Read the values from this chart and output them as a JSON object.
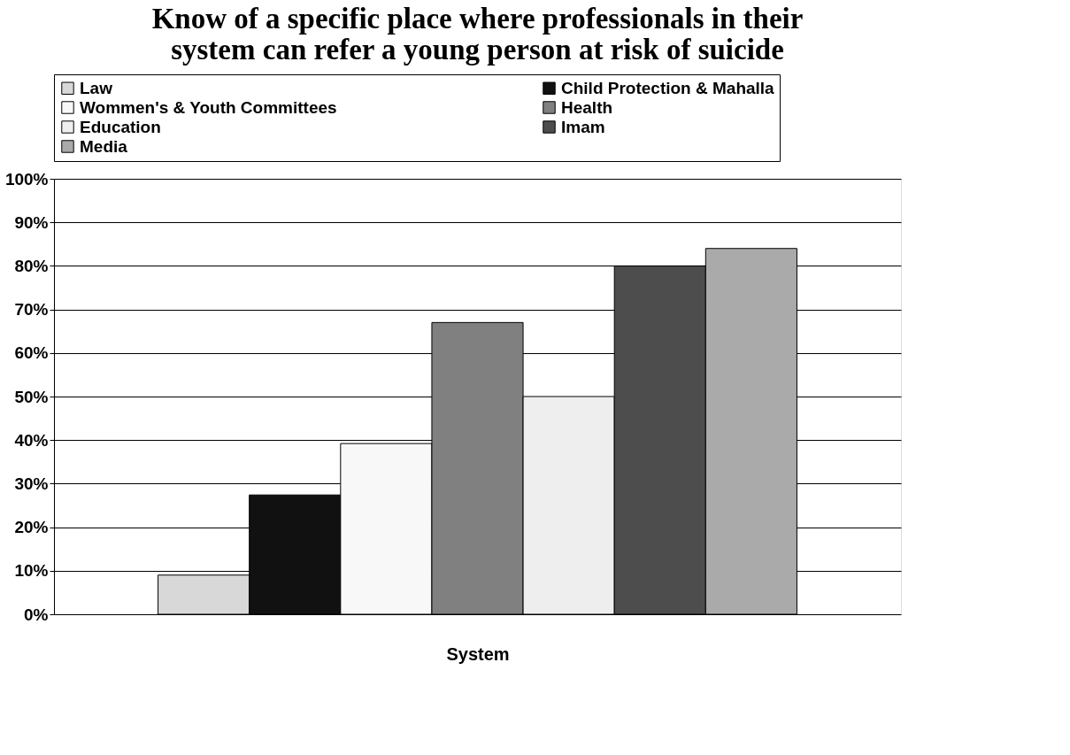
{
  "chart_data": {
    "type": "bar",
    "title": "Know of a specific place where professionals in their\nsystem can refer a young person at risk of suicide",
    "xlabel": "System",
    "categories": [
      null
    ],
    "series": [
      {
        "name": "Law",
        "color": "#d8d8d8",
        "values": [
          9
        ]
      },
      {
        "name": "Child Protection & Mahalla",
        "color": "#111111",
        "values": [
          27.4
        ]
      },
      {
        "name": "Wommen's & Youth Committees",
        "color": "#f8f8f8",
        "values": [
          39.2
        ]
      },
      {
        "name": "Health",
        "color": "#808080",
        "values": [
          67
        ]
      },
      {
        "name": "Education",
        "color": "#eeeeee",
        "values": [
          50
        ]
      },
      {
        "name": "Imam",
        "color": "#4d4d4d",
        "values": [
          80
        ]
      },
      {
        "name": "Media",
        "color": "#aaaaaa",
        "values": [
          84
        ]
      }
    ],
    "ylim": [
      0,
      100
    ],
    "yticks": [
      {
        "value": 0,
        "label": "0%"
      },
      {
        "value": 10,
        "label": "10%"
      },
      {
        "value": 20,
        "label": "20%"
      },
      {
        "value": 30,
        "label": "30%"
      },
      {
        "value": 40,
        "label": "40%"
      },
      {
        "value": 50,
        "label": "50%"
      },
      {
        "value": 60,
        "label": "60%"
      },
      {
        "value": 70,
        "label": "70%"
      },
      {
        "value": 80,
        "label": "80%"
      },
      {
        "value": 90,
        "label": "90%"
      },
      {
        "value": 100,
        "label": "100%"
      }
    ],
    "grid": "y",
    "legend": "top",
    "tick_labels": "y"
  }
}
